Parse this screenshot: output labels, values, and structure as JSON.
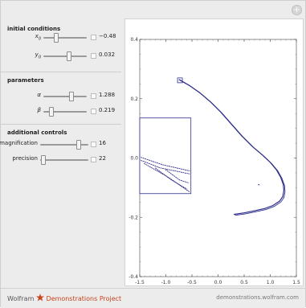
{
  "sections": {
    "initial": "initial conditions",
    "params": "parameters",
    "additional": "additional controls"
  },
  "controls": {
    "x0": {
      "label": "x",
      "sub": "0",
      "value": "−0.48",
      "level": 0.35
    },
    "y0": {
      "label": "y",
      "sub": "0",
      "value": "0.032",
      "level": 0.55
    },
    "alpha": {
      "label": "α",
      "value": "1.288",
      "level": 0.6
    },
    "beta": {
      "label": "β",
      "value": "0.219",
      "level": 0.2
    },
    "magnification": {
      "label": "magnification",
      "value": "16",
      "level": 0.85
    },
    "precision": {
      "label": "precision",
      "value": "22",
      "level": 0.05
    }
  },
  "chart_data": {
    "type": "scatter",
    "xlim": [
      -1.5,
      1.5
    ],
    "ylim": [
      -0.4,
      0.4
    ],
    "x_ticks": [
      "-1.5",
      "-1.0",
      "-0.5",
      "0.0",
      "0.5",
      "1.0",
      "1.5"
    ],
    "y_ticks": [
      "-0.4",
      "-0.2",
      "0.0",
      "0.2",
      "0.4"
    ],
    "color": "#2e2e8c",
    "attractor_points": [
      [
        -0.75,
        0.265
      ],
      [
        -0.55,
        0.245
      ],
      [
        -0.35,
        0.22
      ],
      [
        -0.15,
        0.19
      ],
      [
        0.05,
        0.155
      ],
      [
        0.25,
        0.115
      ],
      [
        0.45,
        0.075
      ],
      [
        0.65,
        0.04
      ],
      [
        0.85,
        0.01
      ],
      [
        1.0,
        -0.015
      ],
      [
        1.12,
        -0.04
      ],
      [
        1.2,
        -0.065
      ],
      [
        1.25,
        -0.09
      ],
      [
        1.26,
        -0.11
      ],
      [
        1.24,
        -0.13
      ],
      [
        1.18,
        -0.145
      ],
      [
        1.05,
        -0.16
      ],
      [
        0.9,
        -0.17
      ],
      [
        0.7,
        -0.178
      ],
      [
        0.5,
        -0.185
      ],
      [
        0.3,
        -0.19
      ]
    ],
    "small_mark": [
      0.78,
      -0.09
    ],
    "highlight_box_point": [
      -0.73,
      0.262
    ],
    "inset": {
      "x0": -1.5,
      "x1": -0.52,
      "y0": -0.12,
      "y1": 0.135
    }
  },
  "footer": {
    "brand_prefix": "Wolfram ",
    "brand_name": "Demonstrations Project",
    "site": "demonstrations.wolfram.com"
  },
  "top": {
    "plus": "+"
  }
}
